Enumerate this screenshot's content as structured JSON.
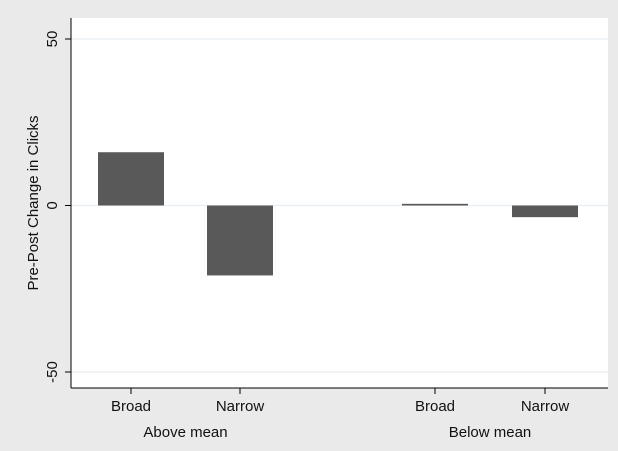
{
  "chart_data": {
    "type": "bar",
    "ylabel": "Pre-Post Change in Clicks",
    "xlabel": "",
    "ylim": [
      -50,
      50
    ],
    "yticks": [
      -50,
      0,
      50
    ],
    "grid": true,
    "groups": [
      {
        "label": "Above mean",
        "categories": [
          "Broad",
          "Narrow"
        ],
        "values": [
          16,
          -21
        ]
      },
      {
        "label": "Below mean",
        "categories": [
          "Broad",
          "Narrow"
        ],
        "values": [
          0.5,
          -3.5
        ]
      }
    ],
    "colors": {
      "bar": "#595959",
      "background": "#eaeaea",
      "plot_background": "#ffffff",
      "grid": "#e8eef2"
    }
  }
}
